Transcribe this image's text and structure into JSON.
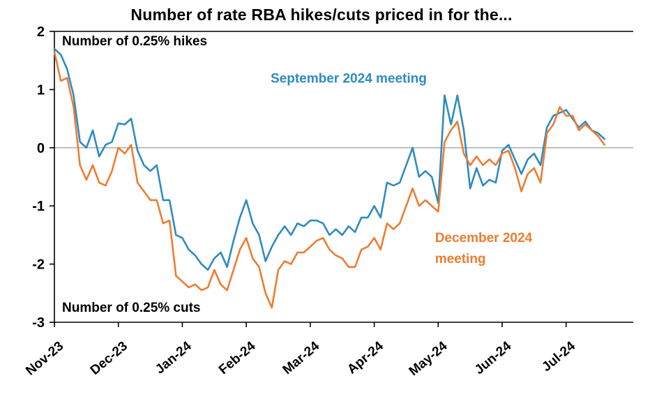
{
  "title": "Number of rate RBA hikes/cuts priced in for the...",
  "chart_data": {
    "type": "line",
    "title": "Number of rate RBA hikes/cuts priced in for the...",
    "xlabel": "",
    "ylabel": "",
    "grid": false,
    "legend_position": "in-plot annotations",
    "xlim": [
      0,
      9.05
    ],
    "ylim": [
      -3,
      2
    ],
    "x_start": 0,
    "x_step": 0.1,
    "x_unit": "months since Nov-23",
    "x_tick_labels": [
      "Nov-23",
      "Dec-23",
      "Jan-24",
      "Feb-24",
      "Mar-24",
      "Apr-24",
      "May-24",
      "Jun-24",
      "Jul-24"
    ],
    "y_ticks": [
      2,
      1,
      0,
      -1,
      -2,
      -3
    ],
    "colors": {
      "zero_line": "#A6A6A6",
      "axis": "#000000",
      "september": "#2E8BC0",
      "december": "#ED7D31"
    },
    "series": [
      {
        "name": "September 2024 meeting",
        "slug": "september-2024",
        "color": "#2E8BC0",
        "values": [
          1.7,
          1.6,
          1.35,
          0.9,
          0.1,
          0,
          0.3,
          -0.15,
          0.05,
          0.1,
          0.42,
          0.4,
          0.5,
          -0.05,
          -0.3,
          -0.4,
          -0.3,
          -0.9,
          -0.9,
          -1.5,
          -1.55,
          -1.75,
          -1.85,
          -2,
          -2.1,
          -1.9,
          -1.8,
          -2.05,
          -1.6,
          -1.2,
          -0.9,
          -1.3,
          -1.5,
          -1.95,
          -1.7,
          -1.5,
          -1.35,
          -1.5,
          -1.3,
          -1.35,
          -1.25,
          -1.25,
          -1.3,
          -1.5,
          -1.4,
          -1.5,
          -1.35,
          -1.45,
          -1.2,
          -1.2,
          -1,
          -1.2,
          -0.6,
          -0.65,
          -0.6,
          -0.3,
          0,
          -0.5,
          -0.4,
          -0.5,
          -0.95,
          0.9,
          0.4,
          0.9,
          0.3,
          -0.7,
          -0.35,
          -0.65,
          -0.55,
          -0.6,
          -0.05,
          0.05,
          -0.2,
          -0.45,
          -0.2,
          -0.1,
          -0.3,
          0.35,
          0.55,
          0.6,
          0.65,
          0.5,
          0.35,
          0.45,
          0.3,
          0.25,
          0.15
        ]
      },
      {
        "name": "December 2024 meeting",
        "slug": "december-2024",
        "color": "#ED7D31",
        "values": [
          1.65,
          1.15,
          1.2,
          0.7,
          -0.3,
          -0.55,
          -0.3,
          -0.6,
          -0.65,
          -0.4,
          0,
          -0.1,
          0.05,
          -0.6,
          -0.75,
          -0.9,
          -0.9,
          -1.3,
          -1.25,
          -2.2,
          -2.3,
          -2.4,
          -2.35,
          -2.45,
          -2.4,
          -2.1,
          -2.35,
          -2.45,
          -2.1,
          -1.75,
          -1.55,
          -1.9,
          -2.05,
          -2.5,
          -2.75,
          -2.1,
          -1.95,
          -2,
          -1.8,
          -1.8,
          -1.7,
          -1.6,
          -1.55,
          -1.75,
          -1.85,
          -1.9,
          -2.05,
          -2.05,
          -1.75,
          -1.7,
          -1.55,
          -1.75,
          -1.3,
          -1.4,
          -1.3,
          -1,
          -0.7,
          -1,
          -0.9,
          -1,
          -1.1,
          0.1,
          0.3,
          0.45,
          -0.1,
          -0.3,
          -0.15,
          -0.3,
          -0.2,
          -0.3,
          -0.1,
          -0.05,
          -0.35,
          -0.75,
          -0.45,
          -0.35,
          -0.6,
          0.25,
          0.4,
          0.7,
          0.55,
          0.55,
          0.3,
          0.4,
          0.3,
          0.2,
          0.05
        ]
      }
    ],
    "annotations": [
      {
        "slug": "hikes-label",
        "text": "Number of 0.25% hikes",
        "x": 0.12,
        "y": 1.76,
        "color": "#000000"
      },
      {
        "slug": "september-series-label",
        "text": "September 2024 meeting",
        "x": 3.38,
        "y": 1.12,
        "color": "#2E8BC0"
      },
      {
        "slug": "december-series-label-line1",
        "text": "December 2024",
        "x": 5.95,
        "y": -1.62,
        "color": "#ED7D31"
      },
      {
        "slug": "december-series-label-line2",
        "text": "meeting",
        "x": 5.95,
        "y": -1.98,
        "color": "#ED7D31"
      },
      {
        "slug": "cuts-label",
        "text": "Number of 0.25% cuts",
        "x": 0.12,
        "y": -2.82,
        "color": "#000000"
      }
    ]
  }
}
